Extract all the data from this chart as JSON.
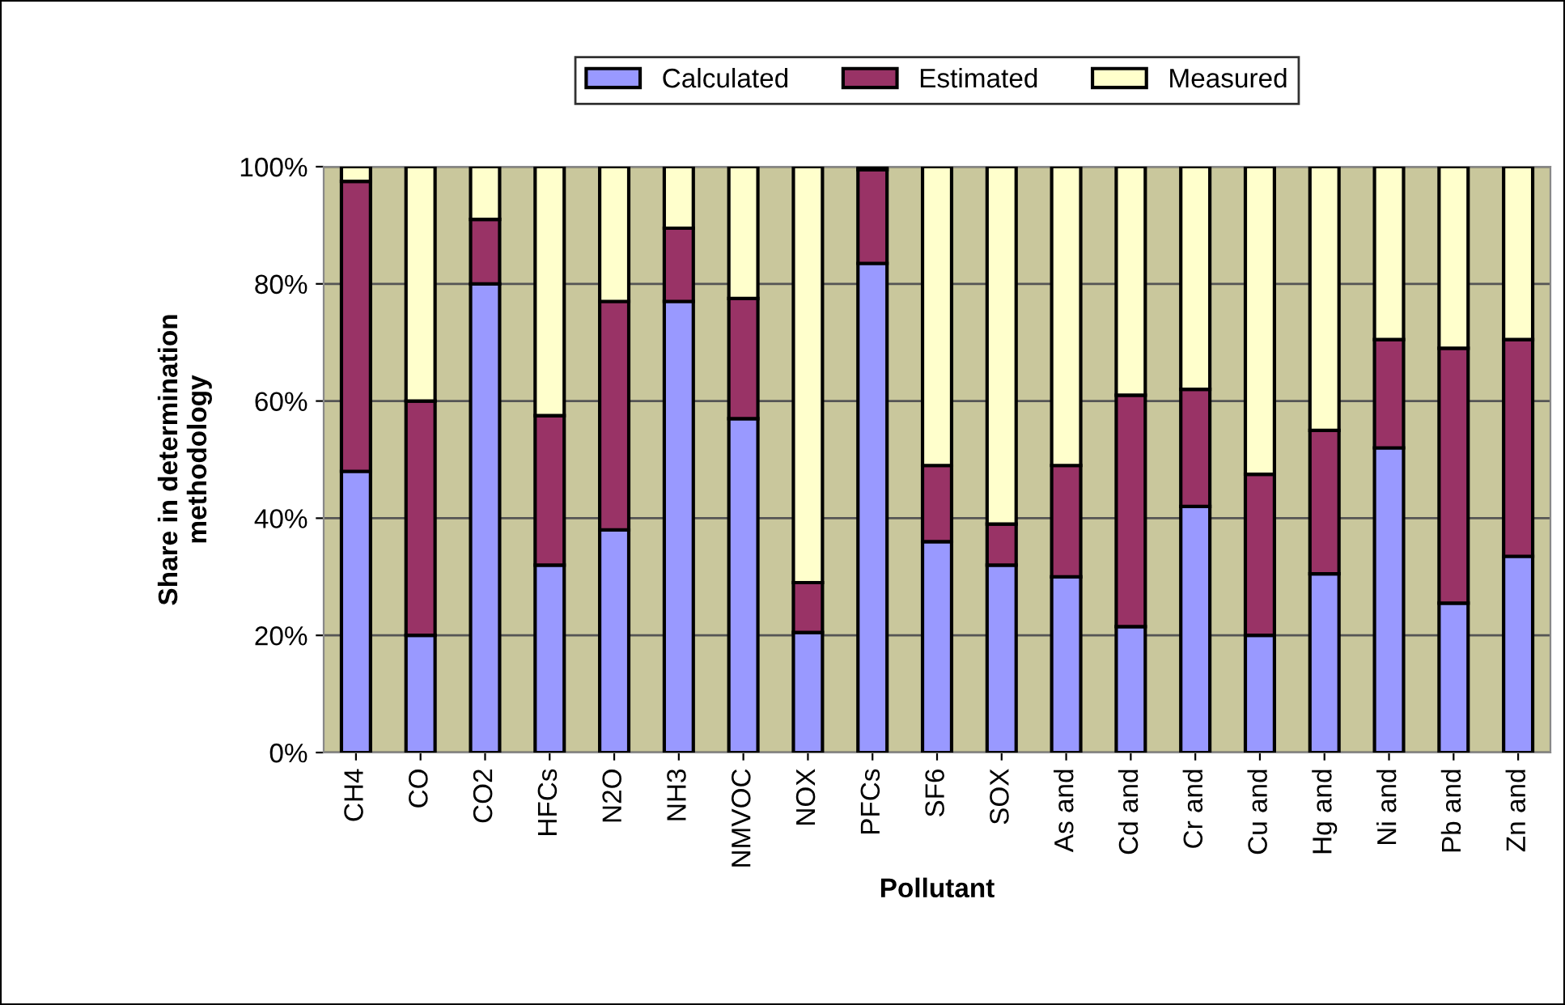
{
  "chart_data": {
    "type": "bar",
    "stacked": true,
    "xlabel": "Pollutant",
    "ylabel": "Share in determination\nmethodology",
    "categories": [
      "CH4",
      "CO",
      "CO2",
      "HFCs",
      "N2O",
      "NH3",
      "NMVOC",
      "NOX",
      "PFCs",
      "SF6",
      "SOX",
      "As and",
      "Cd and",
      "Cr and",
      "Cu and",
      "Hg and",
      "Ni and",
      "Pb and",
      "Zn and"
    ],
    "series": [
      {
        "name": "Calculated",
        "color": "#9999ff",
        "values": [
          48,
          20,
          80,
          32,
          38,
          77,
          57,
          20.5,
          83.5,
          36,
          32,
          30,
          21.5,
          42,
          20,
          30.5,
          52,
          25.5,
          33.5
        ]
      },
      {
        "name": "Estimated",
        "color": "#993366",
        "values": [
          49.5,
          40,
          11,
          25.5,
          39,
          12.5,
          20.5,
          8.5,
          16,
          13,
          7,
          19,
          39.5,
          20,
          27.5,
          24.5,
          18.5,
          43.5,
          37
        ]
      },
      {
        "name": "Measured",
        "color": "#ffffcc",
        "values": [
          2.5,
          40,
          9,
          42.5,
          23,
          10.5,
          22.5,
          71,
          0.5,
          51,
          61,
          51,
          39,
          38,
          52.5,
          45,
          29.5,
          31,
          29.5
        ]
      }
    ],
    "ylim": [
      0,
      100
    ],
    "yticks": [
      {
        "value": 0,
        "label": "0%"
      },
      {
        "value": 20,
        "label": "20%"
      },
      {
        "value": 40,
        "label": "40%"
      },
      {
        "value": 60,
        "label": "60%"
      },
      {
        "value": 80,
        "label": "80%"
      },
      {
        "value": 100,
        "label": "100%"
      }
    ],
    "grid": "y",
    "legend": "top"
  }
}
